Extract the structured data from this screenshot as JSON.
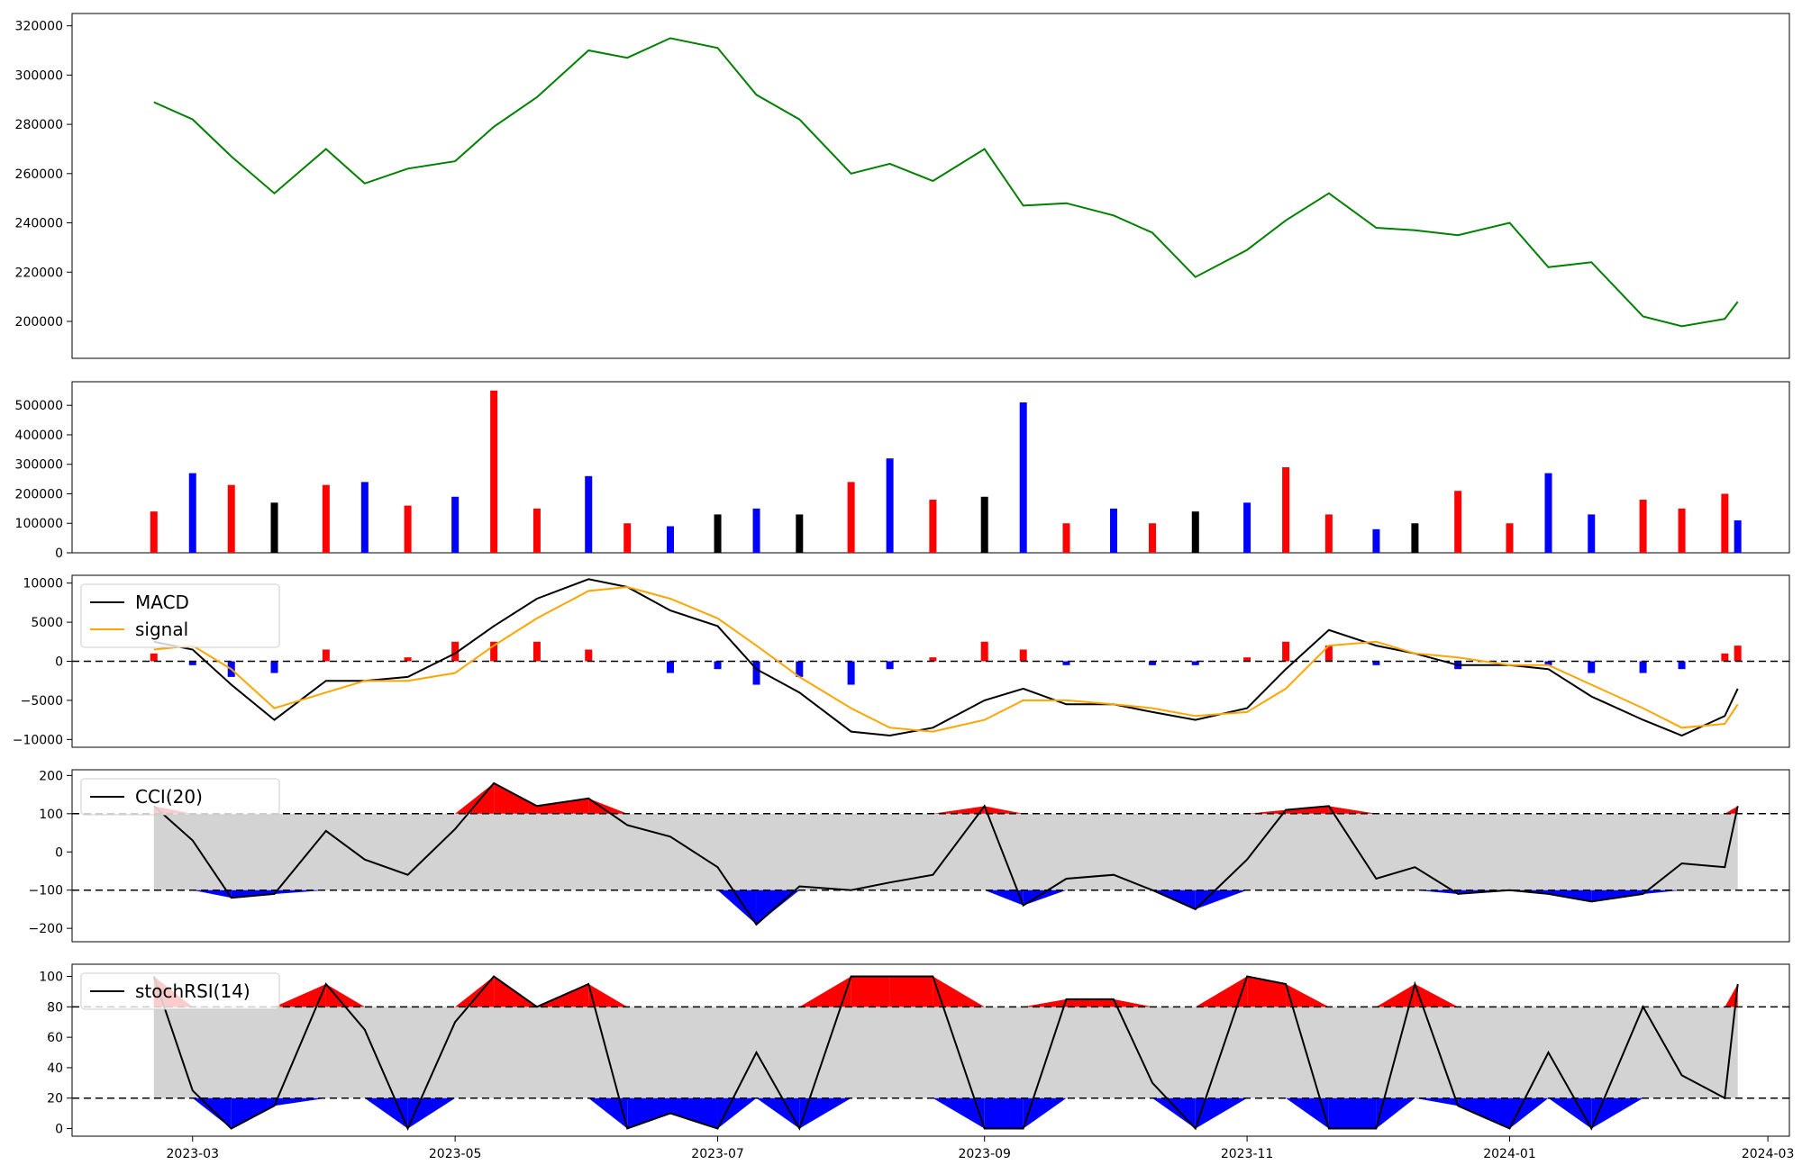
{
  "chart_data": [
    {
      "type": "line",
      "panel": "price",
      "ylim": [
        185000,
        325000
      ],
      "yticks": [
        "200000",
        "220000",
        "240000",
        "260000",
        "280000",
        "300000",
        "320000"
      ],
      "colors": {
        "line": "#008000"
      },
      "series": [
        {
          "x": [
            "2023-02-20",
            "2023-03-01",
            "2023-03-10",
            "2023-03-20",
            "2023-04-01",
            "2023-04-10",
            "2023-04-20",
            "2023-05-01",
            "2023-05-10",
            "2023-05-20",
            "2023-06-01",
            "2023-06-10",
            "2023-06-20",
            "2023-07-01",
            "2023-07-10",
            "2023-07-20",
            "2023-08-01",
            "2023-08-10",
            "2023-08-20",
            "2023-09-01",
            "2023-09-10",
            "2023-09-20",
            "2023-10-01",
            "2023-10-10",
            "2023-10-20",
            "2023-11-01",
            "2023-11-10",
            "2023-11-20",
            "2023-12-01",
            "2023-12-10",
            "2023-12-20",
            "2024-01-01",
            "2024-01-10",
            "2024-01-20",
            "2024-02-01",
            "2024-02-10",
            "2024-02-20",
            "2024-02-23"
          ],
          "values": [
            289000,
            282000,
            267000,
            252000,
            270000,
            256000,
            262000,
            265000,
            279000,
            291000,
            310000,
            307000,
            315000,
            311000,
            292000,
            282000,
            260000,
            264000,
            257000,
            270000,
            247000,
            248000,
            243000,
            236000,
            218000,
            229000,
            241000,
            252000,
            238000,
            237000,
            235000,
            240000,
            222000,
            224000,
            202000,
            198000,
            201000,
            208000
          ]
        }
      ]
    },
    {
      "type": "bar",
      "panel": "volume",
      "ylim": [
        0,
        580000
      ],
      "yticks": [
        "0",
        "100000",
        "200000",
        "300000",
        "400000",
        "500000"
      ],
      "colors": {
        "up": "#ff0000",
        "down": "#0000ff",
        "flat": "#000000"
      },
      "x": [
        "2023-02-20",
        "2023-03-01",
        "2023-03-10",
        "2023-03-20",
        "2023-04-01",
        "2023-04-10",
        "2023-04-20",
        "2023-05-01",
        "2023-05-10",
        "2023-05-20",
        "2023-06-01",
        "2023-06-10",
        "2023-06-20",
        "2023-07-01",
        "2023-07-10",
        "2023-07-20",
        "2023-08-01",
        "2023-08-10",
        "2023-08-20",
        "2023-09-01",
        "2023-09-10",
        "2023-09-20",
        "2023-10-01",
        "2023-10-10",
        "2023-10-20",
        "2023-11-01",
        "2023-11-10",
        "2023-11-20",
        "2023-12-01",
        "2023-12-10",
        "2023-12-20",
        "2024-01-01",
        "2024-01-10",
        "2024-01-20",
        "2024-02-01",
        "2024-02-10",
        "2024-02-20",
        "2024-02-23"
      ],
      "values": [
        140000,
        270000,
        230000,
        170000,
        230000,
        240000,
        160000,
        190000,
        550000,
        150000,
        260000,
        100000,
        90000,
        130000,
        150000,
        130000,
        240000,
        320000,
        180000,
        190000,
        510000,
        100000,
        150000,
        100000,
        140000,
        170000,
        290000,
        130000,
        80000,
        100000,
        210000,
        100000,
        270000,
        130000,
        180000,
        150000,
        200000,
        110000
      ],
      "directions": [
        "up",
        "down",
        "up",
        "flat",
        "up",
        "down",
        "up",
        "down",
        "up",
        "up",
        "down",
        "up",
        "down",
        "flat",
        "down",
        "flat",
        "up",
        "down",
        "up",
        "flat",
        "down",
        "up",
        "down",
        "up",
        "flat",
        "down",
        "up",
        "up",
        "down",
        "flat",
        "up",
        "up",
        "down",
        "down",
        "up",
        "up",
        "up",
        "down"
      ]
    },
    {
      "type": "line",
      "panel": "macd",
      "ylim": [
        -11000,
        11000
      ],
      "yticks": [
        "10000",
        "5000",
        "0",
        "−5000",
        "−10000"
      ],
      "legend": [
        "MACD",
        "signal"
      ],
      "colors": {
        "macd": "#000000",
        "signal": "#ffa500",
        "hist_pos": "#ff0000",
        "hist_neg": "#0000ff"
      },
      "x": [
        "2023-02-20",
        "2023-03-01",
        "2023-03-10",
        "2023-03-20",
        "2023-04-01",
        "2023-04-10",
        "2023-04-20",
        "2023-05-01",
        "2023-05-10",
        "2023-05-20",
        "2023-06-01",
        "2023-06-10",
        "2023-06-20",
        "2023-07-01",
        "2023-07-10",
        "2023-07-20",
        "2023-08-01",
        "2023-08-10",
        "2023-08-20",
        "2023-09-01",
        "2023-09-10",
        "2023-09-20",
        "2023-10-01",
        "2023-10-10",
        "2023-10-20",
        "2023-11-01",
        "2023-11-10",
        "2023-11-20",
        "2023-12-01",
        "2023-12-10",
        "2023-12-20",
        "2024-01-01",
        "2024-01-10",
        "2024-01-20",
        "2024-02-01",
        "2024-02-10",
        "2024-02-20",
        "2024-02-23"
      ],
      "series": [
        {
          "name": "MACD",
          "values": [
            2500,
            1500,
            -3000,
            -7500,
            -2500,
            -2500,
            -2000,
            1000,
            4500,
            8000,
            10500,
            9500,
            6500,
            4500,
            -1000,
            -4000,
            -9000,
            -9500,
            -8500,
            -5000,
            -3500,
            -5500,
            -5500,
            -6500,
            -7500,
            -6000,
            -1000,
            4000,
            2000,
            1000,
            -500,
            -500,
            -1000,
            -4500,
            -7500,
            -9500,
            -7000,
            -3500
          ],
          "line_only": true
        },
        {
          "name": "signal",
          "values": [
            1500,
            2000,
            -1000,
            -6000,
            -4000,
            -2500,
            -2500,
            -1500,
            2000,
            5500,
            9000,
            9500,
            8000,
            5500,
            2000,
            -2000,
            -6000,
            -8500,
            -9000,
            -7500,
            -5000,
            -5000,
            -5500,
            -6000,
            -7000,
            -6500,
            -3500,
            2000,
            2500,
            1000,
            500,
            -500,
            -500,
            -3000,
            -6000,
            -8500,
            -8000,
            -5500
          ]
        }
      ],
      "histogram": [
        1000,
        -500,
        -2000,
        -1500,
        1500,
        0,
        500,
        2500,
        2500,
        2500,
        1500,
        0,
        -1500,
        -1000,
        -3000,
        -2000,
        -3000,
        -1000,
        500,
        2500,
        1500,
        -500,
        0,
        -500,
        -500,
        500,
        2500,
        2000,
        -500,
        0,
        -1000,
        0,
        -500,
        -1500,
        -1500,
        -1000,
        1000,
        2000
      ]
    },
    {
      "type": "line",
      "panel": "cci",
      "ylim": [
        -235,
        215
      ],
      "yticks": [
        "200",
        "100",
        "0",
        "−100",
        "−200"
      ],
      "legend": [
        "CCI(20)"
      ],
      "colors": {
        "line": "#000000",
        "over": "#ff0000",
        "under": "#0000ff",
        "band": "#d3d3d3"
      },
      "thresholds": [
        100,
        -100
      ],
      "x": [
        "2023-02-20",
        "2023-03-01",
        "2023-03-10",
        "2023-03-20",
        "2023-04-01",
        "2023-04-10",
        "2023-04-20",
        "2023-05-01",
        "2023-05-10",
        "2023-05-20",
        "2023-06-01",
        "2023-06-10",
        "2023-06-20",
        "2023-07-01",
        "2023-07-10",
        "2023-07-20",
        "2023-08-01",
        "2023-08-10",
        "2023-08-20",
        "2023-09-01",
        "2023-09-10",
        "2023-09-20",
        "2023-10-01",
        "2023-10-10",
        "2023-10-20",
        "2023-11-01",
        "2023-11-10",
        "2023-11-20",
        "2023-12-01",
        "2023-12-10",
        "2023-12-20",
        "2024-01-01",
        "2024-01-10",
        "2024-01-20",
        "2024-02-01",
        "2024-02-10",
        "2024-02-20",
        "2024-02-23"
      ],
      "series": [
        {
          "name": "CCI(20)",
          "values": [
            120,
            30,
            -120,
            -110,
            55,
            -20,
            -60,
            60,
            180,
            120,
            140,
            70,
            40,
            -40,
            -190,
            -90,
            -100,
            -80,
            -60,
            120,
            -140,
            -70,
            -60,
            -100,
            -150,
            -20,
            110,
            120,
            -70,
            -40,
            -110,
            -100,
            -110,
            -130,
            -110,
            -30,
            -40,
            120
          ]
        }
      ]
    },
    {
      "type": "line",
      "panel": "stochrsi",
      "ylim": [
        -5,
        108
      ],
      "yticks": [
        "100",
        "80",
        "60",
        "40",
        "20",
        "0"
      ],
      "legend": [
        "stochRSI(14)"
      ],
      "colors": {
        "line": "#000000",
        "over": "#ff0000",
        "under": "#0000ff",
        "band": "#d3d3d3"
      },
      "thresholds": [
        80,
        20
      ],
      "x": [
        "2023-02-20",
        "2023-03-01",
        "2023-03-10",
        "2023-03-20",
        "2023-04-01",
        "2023-04-10",
        "2023-04-20",
        "2023-05-01",
        "2023-05-10",
        "2023-05-20",
        "2023-06-01",
        "2023-06-10",
        "2023-06-20",
        "2023-07-01",
        "2023-07-10",
        "2023-07-20",
        "2023-08-01",
        "2023-08-10",
        "2023-08-20",
        "2023-09-01",
        "2023-09-10",
        "2023-09-20",
        "2023-10-01",
        "2023-10-10",
        "2023-10-20",
        "2023-11-01",
        "2023-11-10",
        "2023-11-20",
        "2023-12-01",
        "2023-12-10",
        "2023-12-20",
        "2024-01-01",
        "2024-01-10",
        "2024-01-20",
        "2024-02-01",
        "2024-02-10",
        "2024-02-20",
        "2024-02-23"
      ],
      "series": [
        {
          "name": "stochRSI(14)",
          "values": [
            100,
            25,
            0,
            15,
            95,
            65,
            0,
            70,
            100,
            80,
            95,
            0,
            10,
            0,
            50,
            0,
            100,
            100,
            100,
            0,
            0,
            85,
            85,
            30,
            0,
            100,
            95,
            0,
            0,
            95,
            15,
            0,
            50,
            0,
            80,
            35,
            20,
            95
          ]
        }
      ]
    },
    {
      "type": "axis",
      "xticks": [
        "2023-03",
        "2023-05",
        "2023-07",
        "2023-09",
        "2023-11",
        "2024-01",
        "2024-03"
      ]
    }
  ]
}
